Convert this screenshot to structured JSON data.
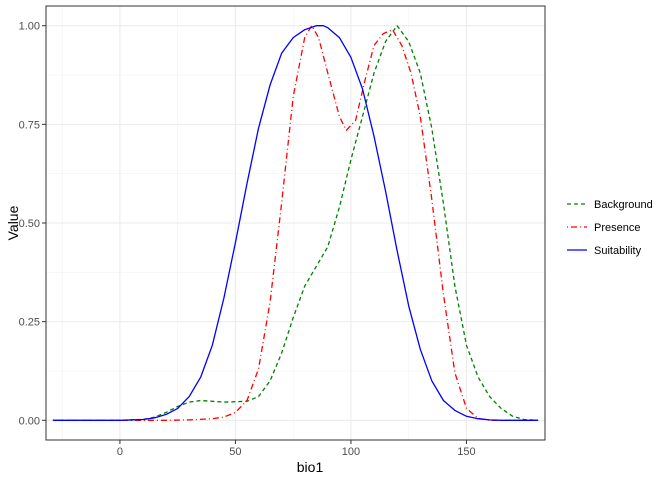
{
  "chart_data": {
    "type": "line",
    "title": "",
    "xlabel": "bio1",
    "ylabel": "Value",
    "xlim": [
      -32,
      184
    ],
    "ylim": [
      -0.05,
      1.05
    ],
    "x_ticks": [
      0,
      50,
      100,
      150
    ],
    "x_tick_labels": [
      "0",
      "50",
      "100",
      "150"
    ],
    "y_ticks": [
      0,
      0.25,
      0.5,
      0.75,
      1.0
    ],
    "y_tick_labels": [
      "0.00",
      "0.25",
      "0.50",
      "0.75",
      "1.00"
    ],
    "grid": true,
    "legend_position": "right",
    "series": [
      {
        "name": "Background",
        "color": "#008000",
        "dash": "dashed",
        "x": [
          -29,
          0,
          10,
          15,
          20,
          25,
          30,
          35,
          40,
          45,
          50,
          55,
          60,
          65,
          70,
          75,
          80,
          85,
          90,
          95,
          100,
          105,
          110,
          115,
          120,
          125,
          130,
          135,
          140,
          145,
          150,
          155,
          160,
          165,
          170,
          175,
          181
        ],
        "y": [
          0,
          0,
          0.002,
          0.008,
          0.02,
          0.035,
          0.046,
          0.05,
          0.048,
          0.046,
          0.047,
          0.048,
          0.06,
          0.1,
          0.17,
          0.26,
          0.34,
          0.39,
          0.44,
          0.54,
          0.66,
          0.77,
          0.88,
          0.96,
          1.0,
          0.96,
          0.88,
          0.74,
          0.55,
          0.34,
          0.19,
          0.11,
          0.06,
          0.03,
          0.01,
          0.002,
          0
        ]
      },
      {
        "name": "Presence",
        "color": "#ff0000",
        "dash": "dotdash",
        "x": [
          -29,
          0,
          20,
          30,
          40,
          45,
          50,
          55,
          60,
          65,
          70,
          75,
          80,
          83,
          86,
          90,
          95,
          98,
          102,
          106,
          110,
          114,
          118,
          122,
          126,
          130,
          135,
          140,
          145,
          150,
          155,
          160,
          181
        ],
        "y": [
          0,
          0,
          0,
          0.001,
          0.004,
          0.008,
          0.02,
          0.05,
          0.13,
          0.3,
          0.55,
          0.82,
          0.97,
          1.0,
          0.97,
          0.88,
          0.77,
          0.735,
          0.76,
          0.86,
          0.95,
          0.98,
          0.99,
          0.95,
          0.88,
          0.77,
          0.56,
          0.32,
          0.12,
          0.03,
          0.005,
          0,
          0
        ]
      },
      {
        "name": "Suitability",
        "color": "#0000ff",
        "dash": "solid",
        "x": [
          -29,
          0,
          10,
          15,
          20,
          25,
          30,
          35,
          40,
          45,
          50,
          55,
          60,
          65,
          70,
          75,
          80,
          85,
          88,
          90,
          95,
          100,
          105,
          110,
          115,
          120,
          125,
          130,
          135,
          140,
          145,
          150,
          155,
          160,
          165,
          170,
          181
        ],
        "y": [
          0,
          0,
          0.002,
          0.006,
          0.015,
          0.03,
          0.06,
          0.11,
          0.19,
          0.31,
          0.45,
          0.6,
          0.74,
          0.85,
          0.93,
          0.97,
          0.99,
          1.0,
          1.0,
          0.995,
          0.97,
          0.92,
          0.84,
          0.72,
          0.58,
          0.43,
          0.29,
          0.18,
          0.1,
          0.05,
          0.025,
          0.01,
          0.004,
          0.001,
          0,
          0,
          0
        ]
      }
    ]
  }
}
